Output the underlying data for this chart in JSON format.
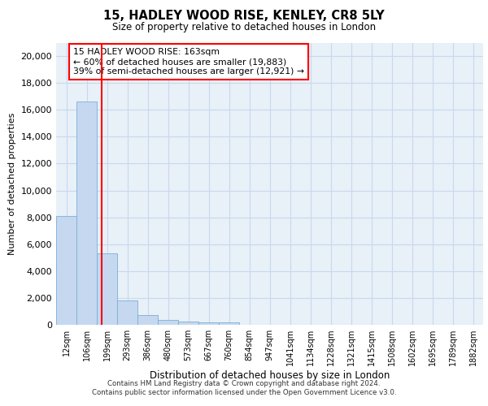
{
  "title": "15, HADLEY WOOD RISE, KENLEY, CR8 5LY",
  "subtitle": "Size of property relative to detached houses in London",
  "xlabel": "Distribution of detached houses by size in London",
  "ylabel": "Number of detached properties",
  "bar_color": "#c5d8f0",
  "bar_edge_color": "#7aafd4",
  "grid_color": "#c8d8ee",
  "background_color": "#e8f0f8",
  "vline_color": "red",
  "annotation_text": "15 HADLEY WOOD RISE: 163sqm\n← 60% of detached houses are smaller (19,883)\n39% of semi-detached houses are larger (12,921) →",
  "annotation_box_color": "white",
  "annotation_box_edge": "red",
  "categories": [
    "12sqm",
    "106sqm",
    "199sqm",
    "293sqm",
    "386sqm",
    "480sqm",
    "573sqm",
    "667sqm",
    "760sqm",
    "854sqm",
    "947sqm",
    "1041sqm",
    "1134sqm",
    "1228sqm",
    "1321sqm",
    "1415sqm",
    "1508sqm",
    "1602sqm",
    "1695sqm",
    "1789sqm",
    "1882sqm"
  ],
  "values": [
    8100,
    16600,
    5300,
    1800,
    750,
    350,
    250,
    200,
    170,
    0,
    0,
    0,
    0,
    0,
    0,
    0,
    0,
    0,
    0,
    0,
    0
  ],
  "ylim": [
    0,
    21000
  ],
  "yticks": [
    0,
    2000,
    4000,
    6000,
    8000,
    10000,
    12000,
    14000,
    16000,
    18000,
    20000
  ],
  "footer_line1": "Contains HM Land Registry data © Crown copyright and database right 2024.",
  "footer_line2": "Contains public sector information licensed under the Open Government Licence v3.0.",
  "vline_position": 1.72
}
